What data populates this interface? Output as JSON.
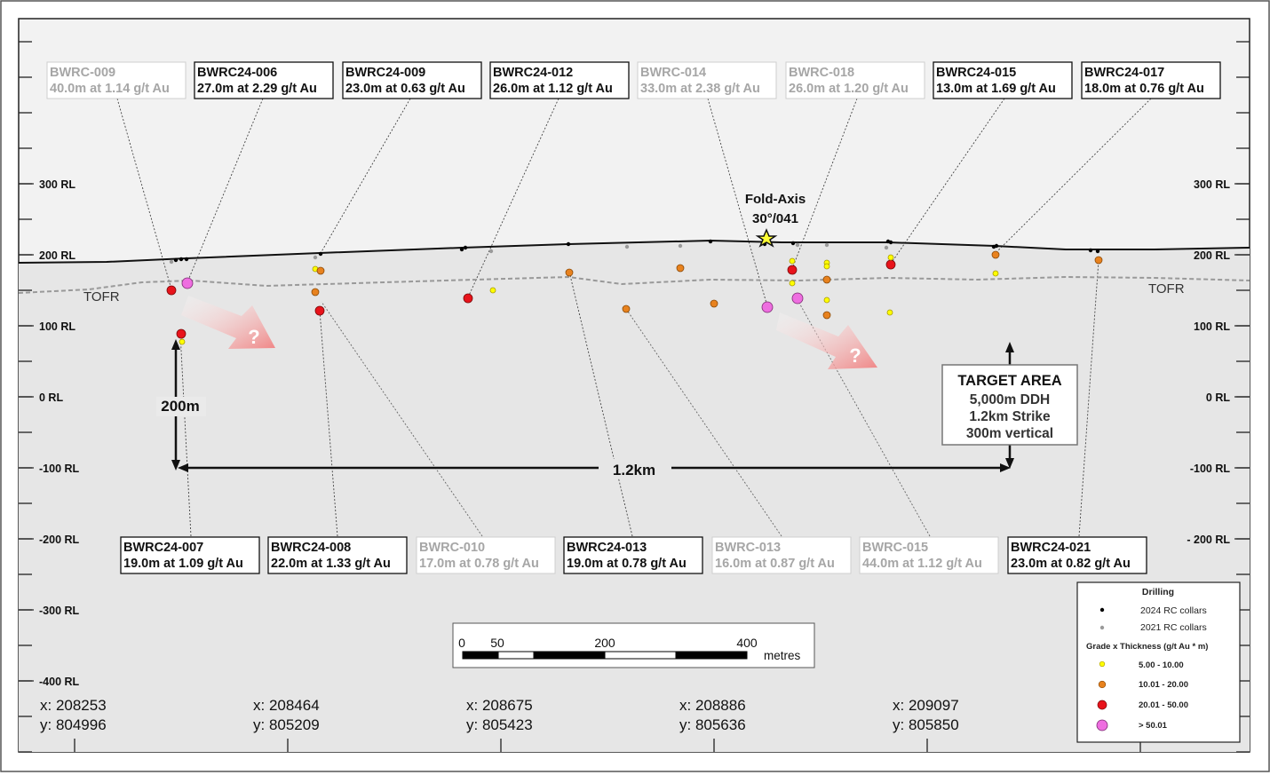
{
  "axis": {
    "rl_labels": [
      "300 RL",
      "200 RL",
      "100 RL",
      "0 RL",
      "-100 RL",
      "-200 RL",
      "-300 RL",
      "-400 RL"
    ],
    "rl_labels_right": [
      "300 RL",
      "200 RL",
      "100 RL",
      "0 RL",
      "-100 RL",
      "- 200 RL"
    ],
    "coords": [
      {
        "x": "x: 208253",
        "y": "y: 804996"
      },
      {
        "x": "x: 208464",
        "y": "y: 805209"
      },
      {
        "x": "x: 208675",
        "y": "y: 805423"
      },
      {
        "x": "x: 208886",
        "y": "y: 805636"
      },
      {
        "x": "x: 209097",
        "y": "y: 805850"
      }
    ]
  },
  "surface_labels": {
    "tofr_left": "TOFR",
    "tofr_right": "TOFR"
  },
  "fold_axis": {
    "line1": "Fold-Axis",
    "line2": "30°/041"
  },
  "annotations": {
    "vertical": "200m",
    "horizontal": "1.2km",
    "question_1": "?",
    "question_2": "?"
  },
  "target_area": {
    "title": "TARGET AREA",
    "line1": "5,000m DDH",
    "line2": "1.2km Strike",
    "line3": "300m vertical"
  },
  "scale_bar": {
    "t0": "0",
    "t50": "50",
    "t200": "200",
    "t400": "400",
    "unit": "metres"
  },
  "legend": {
    "title": "Drilling",
    "collar_2024": "2024 RC collars",
    "collar_2021": "2021 RC collars",
    "grade_title": "Grade x Thickness (g/t Au * m)",
    "grade_1": "5.00 - 10.00",
    "grade_2": "10.01 - 20.00",
    "grade_3": "20.01 - 50.00",
    "grade_4": "> 50.01",
    "colors": {
      "yellow": "#ffff00",
      "orange": "#e8821e",
      "red": "#e8131b",
      "pink": "#ee6ee0",
      "collar_2024": "#000000",
      "collar_2021": "#9a9a9a"
    }
  },
  "top_labels": [
    {
      "id": "BWRC-009",
      "result": "40.0m at 1.14 g/t Au",
      "faded": true
    },
    {
      "id": "BWRC24-006",
      "result": "27.0m at 2.29 g/t Au",
      "faded": false
    },
    {
      "id": "BWRC24-009",
      "result": "23.0m at 0.63 g/t Au",
      "faded": false
    },
    {
      "id": "BWRC24-012",
      "result": "26.0m at 1.12 g/t Au",
      "faded": false
    },
    {
      "id": "BWRC-014",
      "result": "33.0m at 2.38 g/t Au",
      "faded": true
    },
    {
      "id": "BWRC-018",
      "result": "26.0m at 1.20 g/t Au",
      "faded": true
    },
    {
      "id": "BWRC24-015",
      "result": "13.0m at 1.69 g/t Au",
      "faded": false
    },
    {
      "id": "BWRC24-017",
      "result": "18.0m at 0.76 g/t Au",
      "faded": false
    }
  ],
  "bottom_labels": [
    {
      "id": "BWRC24-007",
      "result": "19.0m at 1.09 g/t Au",
      "faded": false
    },
    {
      "id": "BWRC24-008",
      "result": "22.0m at 1.33 g/t Au",
      "faded": false
    },
    {
      "id": "BWRC-010",
      "result": "17.0m at 0.78 g/t Au",
      "faded": true
    },
    {
      "id": "BWRC24-013",
      "result": "19.0m at 0.78 g/t Au",
      "faded": false
    },
    {
      "id": "BWRC-013",
      "result": "16.0m at 0.87 g/t Au",
      "faded": true
    },
    {
      "id": "BWRC-015",
      "result": "44.0m at 1.12 g/t Au",
      "faded": true
    },
    {
      "id": "BWRC24-021",
      "result": "23.0m at 0.82 g/t Au",
      "faded": false
    }
  ]
}
